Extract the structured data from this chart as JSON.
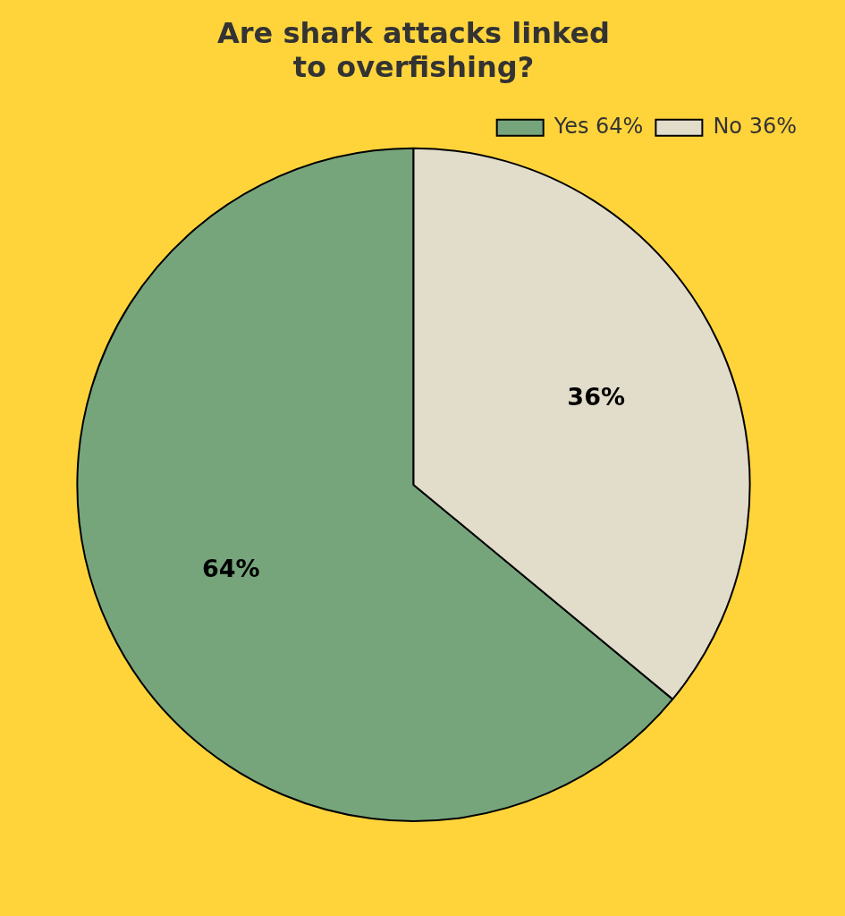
{
  "chart_data": {
    "type": "pie",
    "title": "Are shark attacks linked\nto overfishing?",
    "categories": [
      "Yes 64%",
      "No 36%"
    ],
    "values": [
      64,
      36
    ],
    "colors": [
      "#76a57c",
      "#e2dccb"
    ],
    "value_labels": [
      "64%",
      "36%"
    ],
    "legend": "top right"
  }
}
